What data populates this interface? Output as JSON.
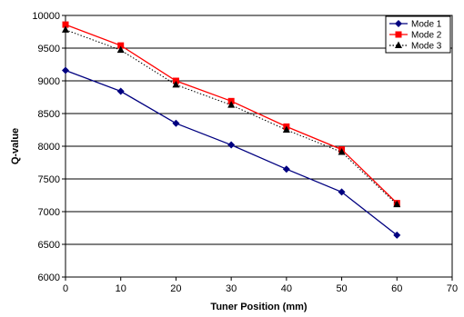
{
  "chart_data": {
    "type": "line",
    "title": "",
    "xlabel": "Tuner Position (mm)",
    "ylabel": "Q-value",
    "xlim": [
      0,
      70
    ],
    "ylim": [
      6000,
      10000
    ],
    "xticks": [
      "0",
      "10",
      "20",
      "30",
      "40",
      "50",
      "60",
      "70"
    ],
    "yticks": [
      "6000",
      "6500",
      "7000",
      "7500",
      "8000",
      "8500",
      "9000",
      "9500",
      "10000"
    ],
    "grid": "horizontal",
    "legend_position": "top-right",
    "x": [
      0,
      10,
      20,
      30,
      40,
      50,
      60
    ],
    "series": [
      {
        "name": "Mode 1",
        "values": [
          9160,
          8840,
          8350,
          8020,
          7650,
          7300,
          6640
        ],
        "color": "#000080",
        "marker": "diamond",
        "dash": "solid"
      },
      {
        "name": "Mode 2",
        "values": [
          9860,
          9540,
          9000,
          8690,
          8300,
          7950,
          7130
        ],
        "color": "#ff0000",
        "marker": "square",
        "dash": "solid"
      },
      {
        "name": "Mode 3",
        "values": [
          9780,
          9470,
          8940,
          8630,
          8250,
          7910,
          7110
        ],
        "color": "#000000",
        "marker": "triangle",
        "dash": "dotted"
      }
    ]
  }
}
